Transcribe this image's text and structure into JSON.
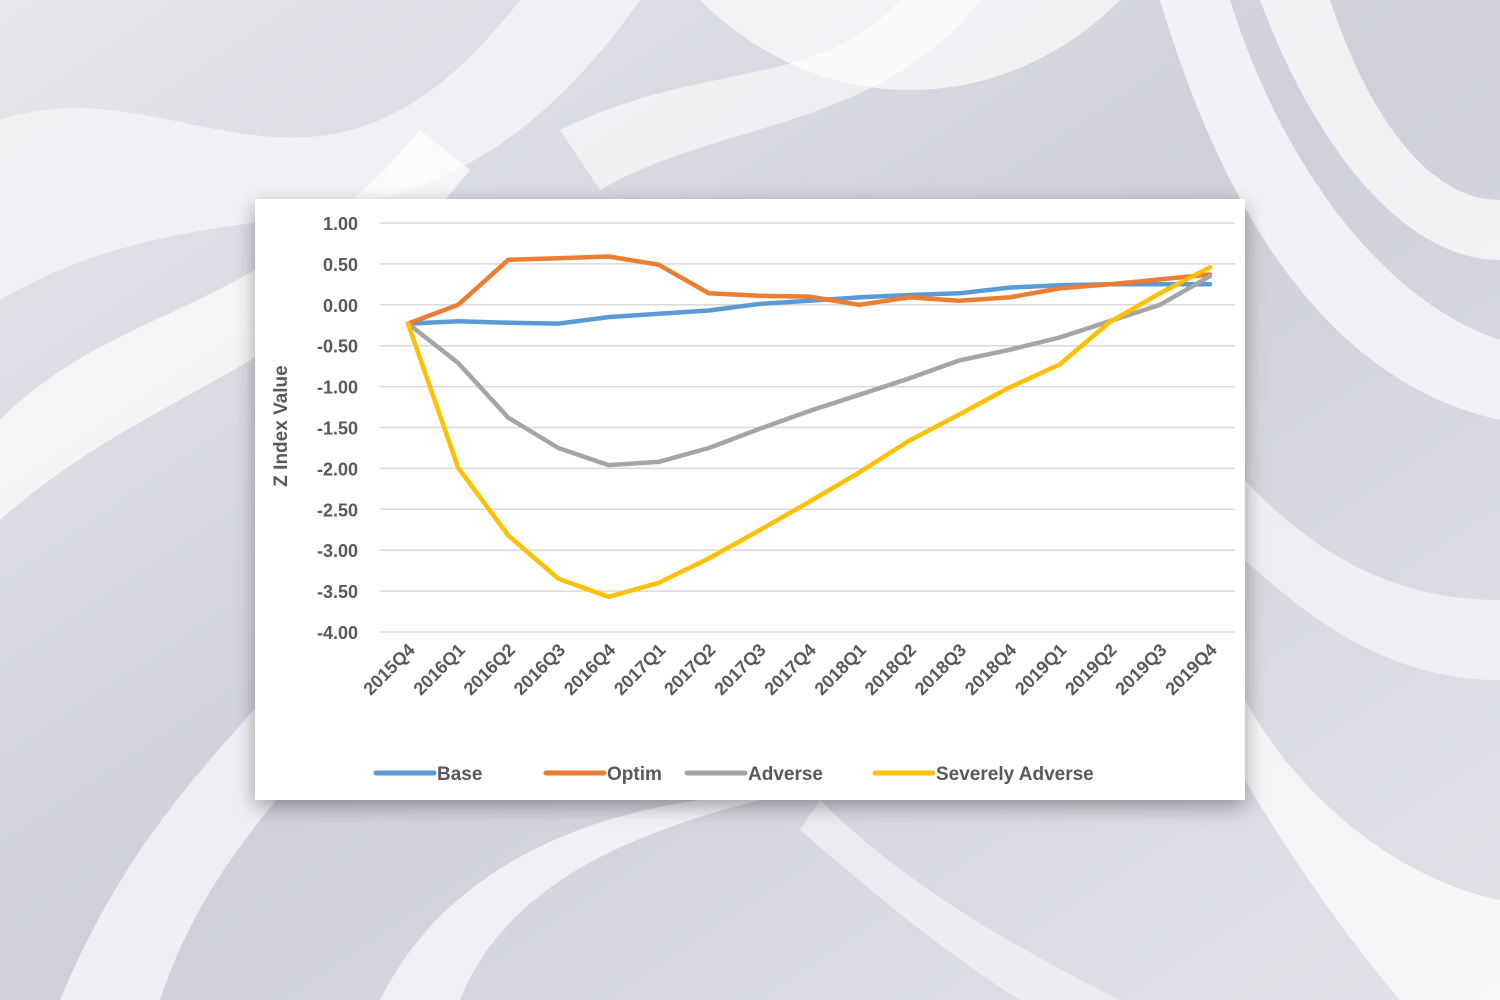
{
  "chart_data": {
    "type": "line",
    "title": "",
    "xlabel": "",
    "ylabel": "Z Index Value",
    "ylim": [
      -4.0,
      1.0
    ],
    "ytick_step": 0.5,
    "yticks": [
      "1.00",
      "0.50",
      "0.00",
      "-0.50",
      "-1.00",
      "-1.50",
      "-2.00",
      "-2.50",
      "-3.00",
      "-3.50",
      "-4.00"
    ],
    "grid": true,
    "legend_position": "bottom",
    "categories": [
      "2015Q4",
      "2016Q1",
      "2016Q2",
      "2016Q3",
      "2016Q4",
      "2017Q1",
      "2017Q2",
      "2017Q3",
      "2017Q4",
      "2018Q1",
      "2018Q2",
      "2018Q3",
      "2018Q4",
      "2019Q1",
      "2019Q2",
      "2019Q3",
      "2019Q4"
    ],
    "series": [
      {
        "name": "Base",
        "color": "#5B9BD5",
        "values": [
          -0.23,
          -0.2,
          -0.22,
          -0.23,
          -0.15,
          -0.11,
          -0.07,
          0.01,
          0.05,
          0.09,
          0.12,
          0.14,
          0.21,
          0.24,
          0.25,
          0.25,
          0.25
        ]
      },
      {
        "name": "Optim",
        "color": "#ED7D31",
        "values": [
          -0.23,
          0.0,
          0.55,
          0.57,
          0.59,
          0.49,
          0.14,
          0.11,
          0.1,
          0.0,
          0.09,
          0.05,
          0.09,
          0.2,
          0.25,
          0.31,
          0.37
        ]
      },
      {
        "name": "Adverse",
        "color": "#A5A5A5",
        "values": [
          -0.23,
          -0.71,
          -1.38,
          -1.75,
          -1.96,
          -1.92,
          -1.75,
          -1.52,
          -1.3,
          -1.1,
          -0.9,
          -0.68,
          -0.55,
          -0.4,
          -0.2,
          0.0,
          0.35
        ]
      },
      {
        "name": "Severely Adverse",
        "color": "#FFC000",
        "values": [
          -0.23,
          -1.99,
          -2.82,
          -3.35,
          -3.57,
          -3.4,
          -3.1,
          -2.76,
          -2.41,
          -2.05,
          -1.66,
          -1.34,
          -1.01,
          -0.73,
          -0.21,
          0.14,
          0.46
        ]
      }
    ]
  }
}
